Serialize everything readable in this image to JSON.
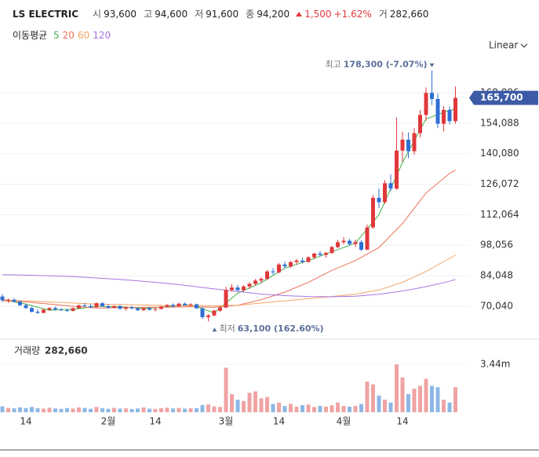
{
  "header": {
    "name": "LS ELECTRIC",
    "fields": [
      {
        "label": "시",
        "value": "93,600"
      },
      {
        "label": "고",
        "value": "94,600"
      },
      {
        "label": "저",
        "value": "91,600"
      },
      {
        "label": "종",
        "value": "94,200"
      }
    ],
    "change": "1,500",
    "change_pct": "+1.62%",
    "volume": {
      "label": "거",
      "value": "282,660"
    }
  },
  "chart_data": [
    {
      "type": "candlestick",
      "legend_title": "이동평균",
      "scale_label": "Linear",
      "last_price_label": "165,700",
      "up_color": "#e0383b",
      "down_color": "#2f6fd6",
      "categories": [
        null,
        null,
        null,
        null,
        "14",
        null,
        null,
        null,
        null,
        null,
        null,
        null,
        null,
        null,
        null,
        null,
        null,
        null,
        "2월",
        null,
        null,
        null,
        null,
        null,
        null,
        null,
        "14",
        null,
        null,
        null,
        null,
        null,
        null,
        null,
        null,
        null,
        null,
        null,
        "3월",
        null,
        null,
        null,
        null,
        null,
        null,
        null,
        null,
        "14",
        null,
        null,
        null,
        null,
        null,
        null,
        null,
        null,
        null,
        null,
        "4월",
        null,
        null,
        null,
        null,
        null,
        null,
        null,
        null,
        null,
        "14",
        null,
        null,
        null,
        null,
        null,
        null,
        null,
        null,
        null
      ],
      "open": [
        74500,
        72800,
        73000,
        72200,
        70500,
        69200,
        67500,
        67000,
        68400,
        69200,
        68500,
        68200,
        67900,
        69100,
        70400,
        70100,
        69600,
        71400,
        70000,
        69300,
        70100,
        68900,
        69500,
        69000,
        68200,
        69100,
        68400,
        68800,
        69900,
        70600,
        70000,
        71200,
        70500,
        70900,
        69100,
        65000,
        65800,
        68000,
        69400,
        77500,
        78600,
        77400,
        79100,
        80300,
        81800,
        82600,
        86000,
        85600,
        89200,
        88300,
        90300,
        91000,
        90400,
        92500,
        94200,
        93600,
        94500,
        97200,
        99400,
        100100,
        98600,
        99500,
        96000,
        106200,
        119800,
        117800,
        126500,
        124000,
        141500,
        146500,
        141200,
        149500,
        157900,
        168000,
        165200,
        153800,
        160200,
        155000
      ],
      "high": [
        75600,
        73600,
        73800,
        72600,
        71200,
        69800,
        68600,
        68800,
        69600,
        69800,
        69300,
        68900,
        69500,
        70800,
        71500,
        71000,
        71800,
        71900,
        70900,
        70400,
        70600,
        69800,
        70300,
        69600,
        69400,
        69700,
        69200,
        70200,
        71000,
        71300,
        71600,
        71800,
        71400,
        71200,
        69500,
        66400,
        68500,
        70000,
        78900,
        80200,
        79800,
        79600,
        81000,
        82500,
        83400,
        86600,
        87500,
        89900,
        90500,
        90800,
        91800,
        92400,
        93000,
        94600,
        95400,
        95000,
        97800,
        100500,
        101800,
        101000,
        100600,
        100300,
        107500,
        121000,
        124000,
        128000,
        130500,
        156800,
        150200,
        149800,
        151800,
        160200,
        170500,
        178300,
        167800,
        162000,
        161800,
        170900
      ],
      "low": [
        72000,
        71500,
        71800,
        70000,
        68800,
        67200,
        66500,
        66800,
        68000,
        68100,
        67800,
        67500,
        67600,
        68800,
        69800,
        69200,
        69300,
        69800,
        69000,
        68900,
        68600,
        68000,
        68700,
        67800,
        67900,
        68100,
        67700,
        68500,
        69400,
        69600,
        69700,
        70300,
        69800,
        68800,
        64200,
        63100,
        65400,
        67500,
        69200,
        76800,
        76900,
        76600,
        78000,
        79400,
        80600,
        82000,
        84600,
        85100,
        87500,
        87700,
        89000,
        89800,
        90000,
        91600,
        92900,
        92300,
        94000,
        96700,
        98400,
        97800,
        97200,
        95300,
        95800,
        105600,
        115000,
        117000,
        122800,
        123500,
        136400,
        138000,
        139500,
        147600,
        155200,
        162400,
        151800,
        150400,
        153500,
        153800
      ],
      "close": [
        72800,
        73000,
        72200,
        70500,
        69200,
        67500,
        67000,
        68400,
        69200,
        68500,
        68200,
        67900,
        69100,
        70400,
        70100,
        69600,
        71400,
        70000,
        69300,
        70100,
        68900,
        69500,
        69000,
        68200,
        69100,
        68400,
        68800,
        69900,
        70600,
        70000,
        71200,
        70500,
        70900,
        69100,
        65000,
        65800,
        68000,
        69400,
        77500,
        78600,
        77400,
        79100,
        80300,
        81800,
        82600,
        86000,
        85600,
        89200,
        88300,
        90300,
        91000,
        90400,
        92500,
        94200,
        93600,
        94500,
        97200,
        99400,
        100100,
        98600,
        99500,
        96000,
        106200,
        119800,
        117800,
        126500,
        124000,
        141500,
        146500,
        141200,
        149500,
        157900,
        168000,
        165200,
        153800,
        160200,
        155000,
        165700
      ],
      "series": [
        {
          "name": "5",
          "color": "#45b04a",
          "x": [
            0,
            4,
            8,
            12,
            16,
            20,
            24,
            28,
            32,
            36,
            40,
            44,
            48,
            52,
            56,
            60,
            64,
            68,
            72,
            76,
            77
          ],
          "values": [
            73000,
            71000,
            68200,
            68600,
            70000,
            69800,
            69000,
            69800,
            70700,
            67000,
            76000,
            80800,
            87500,
            91000,
            95000,
            99000,
            112000,
            136000,
            156000,
            160000,
            160500
          ]
        },
        {
          "name": "20",
          "color": "#e8705a",
          "x": [
            0,
            4,
            8,
            12,
            16,
            20,
            24,
            28,
            32,
            36,
            40,
            44,
            48,
            52,
            56,
            60,
            64,
            68,
            72,
            76,
            77
          ],
          "values": [
            72600,
            72000,
            71000,
            70000,
            69200,
            69400,
            69500,
            69600,
            69800,
            69500,
            70500,
            73000,
            76500,
            81000,
            86500,
            91000,
            97000,
            108000,
            122000,
            131000,
            132500
          ]
        },
        {
          "name": "60",
          "color": "#f5a462",
          "x": [
            0,
            4,
            8,
            12,
            16,
            20,
            24,
            28,
            32,
            36,
            40,
            44,
            48,
            52,
            56,
            60,
            64,
            68,
            72,
            76,
            77
          ],
          "values": [
            73000,
            72500,
            72000,
            71500,
            71000,
            70800,
            70600,
            70400,
            70300,
            70200,
            70500,
            71500,
            72500,
            73500,
            74500,
            75500,
            77500,
            81000,
            86000,
            92000,
            93500
          ]
        },
        {
          "name": "120",
          "color": "#a774e0",
          "x": [
            0,
            4,
            8,
            12,
            16,
            20,
            24,
            28,
            32,
            36,
            40,
            44,
            48,
            52,
            56,
            60,
            64,
            68,
            72,
            76,
            77
          ],
          "values": [
            84500,
            84300,
            84000,
            83600,
            83000,
            82300,
            81500,
            80500,
            79300,
            78000,
            76800,
            75600,
            74900,
            74500,
            74400,
            74600,
            75500,
            77000,
            79000,
            81500,
            82300
          ]
        }
      ],
      "ylim": [
        55600,
        185400
      ],
      "yticks": [
        {
          "value": 70040,
          "label": "70,040"
        },
        {
          "value": 84048,
          "label": "84,048"
        },
        {
          "value": 98056,
          "label": "98,056"
        },
        {
          "value": 112064,
          "label": "112,064"
        },
        {
          "value": 126072,
          "label": "126,072"
        },
        {
          "value": 140080,
          "label": "140,080"
        },
        {
          "value": 154088,
          "label": "154,088"
        },
        {
          "value": 168096,
          "label": "168,096"
        }
      ],
      "grid": true,
      "annotations": {
        "high": {
          "label": "최고",
          "text": "178,300 (-7.07%)"
        },
        "low": {
          "label": "최저",
          "text": "63,100 (162.60%)"
        }
      }
    },
    {
      "type": "bar",
      "title": "거래량",
      "current_value": "282,660",
      "up_color": "#f0a3a3",
      "down_color": "#8db7e6",
      "values": [
        420000,
        310000,
        280000,
        350000,
        300000,
        380000,
        290000,
        260000,
        330000,
        270000,
        240000,
        300000,
        260000,
        350000,
        310000,
        250000,
        380000,
        290000,
        240000,
        310000,
        260000,
        280000,
        230000,
        270000,
        350000,
        260000,
        240000,
        300000,
        330000,
        270000,
        310000,
        260000,
        280000,
        300000,
        520000,
        560000,
        420000,
        380000,
        3200000,
        1300000,
        900000,
        800000,
        1400000,
        1500000,
        1000000,
        1100000,
        600000,
        700000,
        450000,
        600000,
        400000,
        500000,
        550000,
        380000,
        450000,
        400000,
        500000,
        700000,
        450000,
        400000,
        450000,
        600000,
        2200000,
        2000000,
        1200000,
        900000,
        700000,
        3440000,
        2500000,
        1300000,
        1700000,
        1900000,
        2400000,
        1900000,
        1800000,
        900000,
        700000,
        1800000
      ],
      "ylim": [
        0,
        3950000
      ],
      "yticks": [
        {
          "value": 3440000,
          "label": "3.44m"
        }
      ]
    }
  ]
}
